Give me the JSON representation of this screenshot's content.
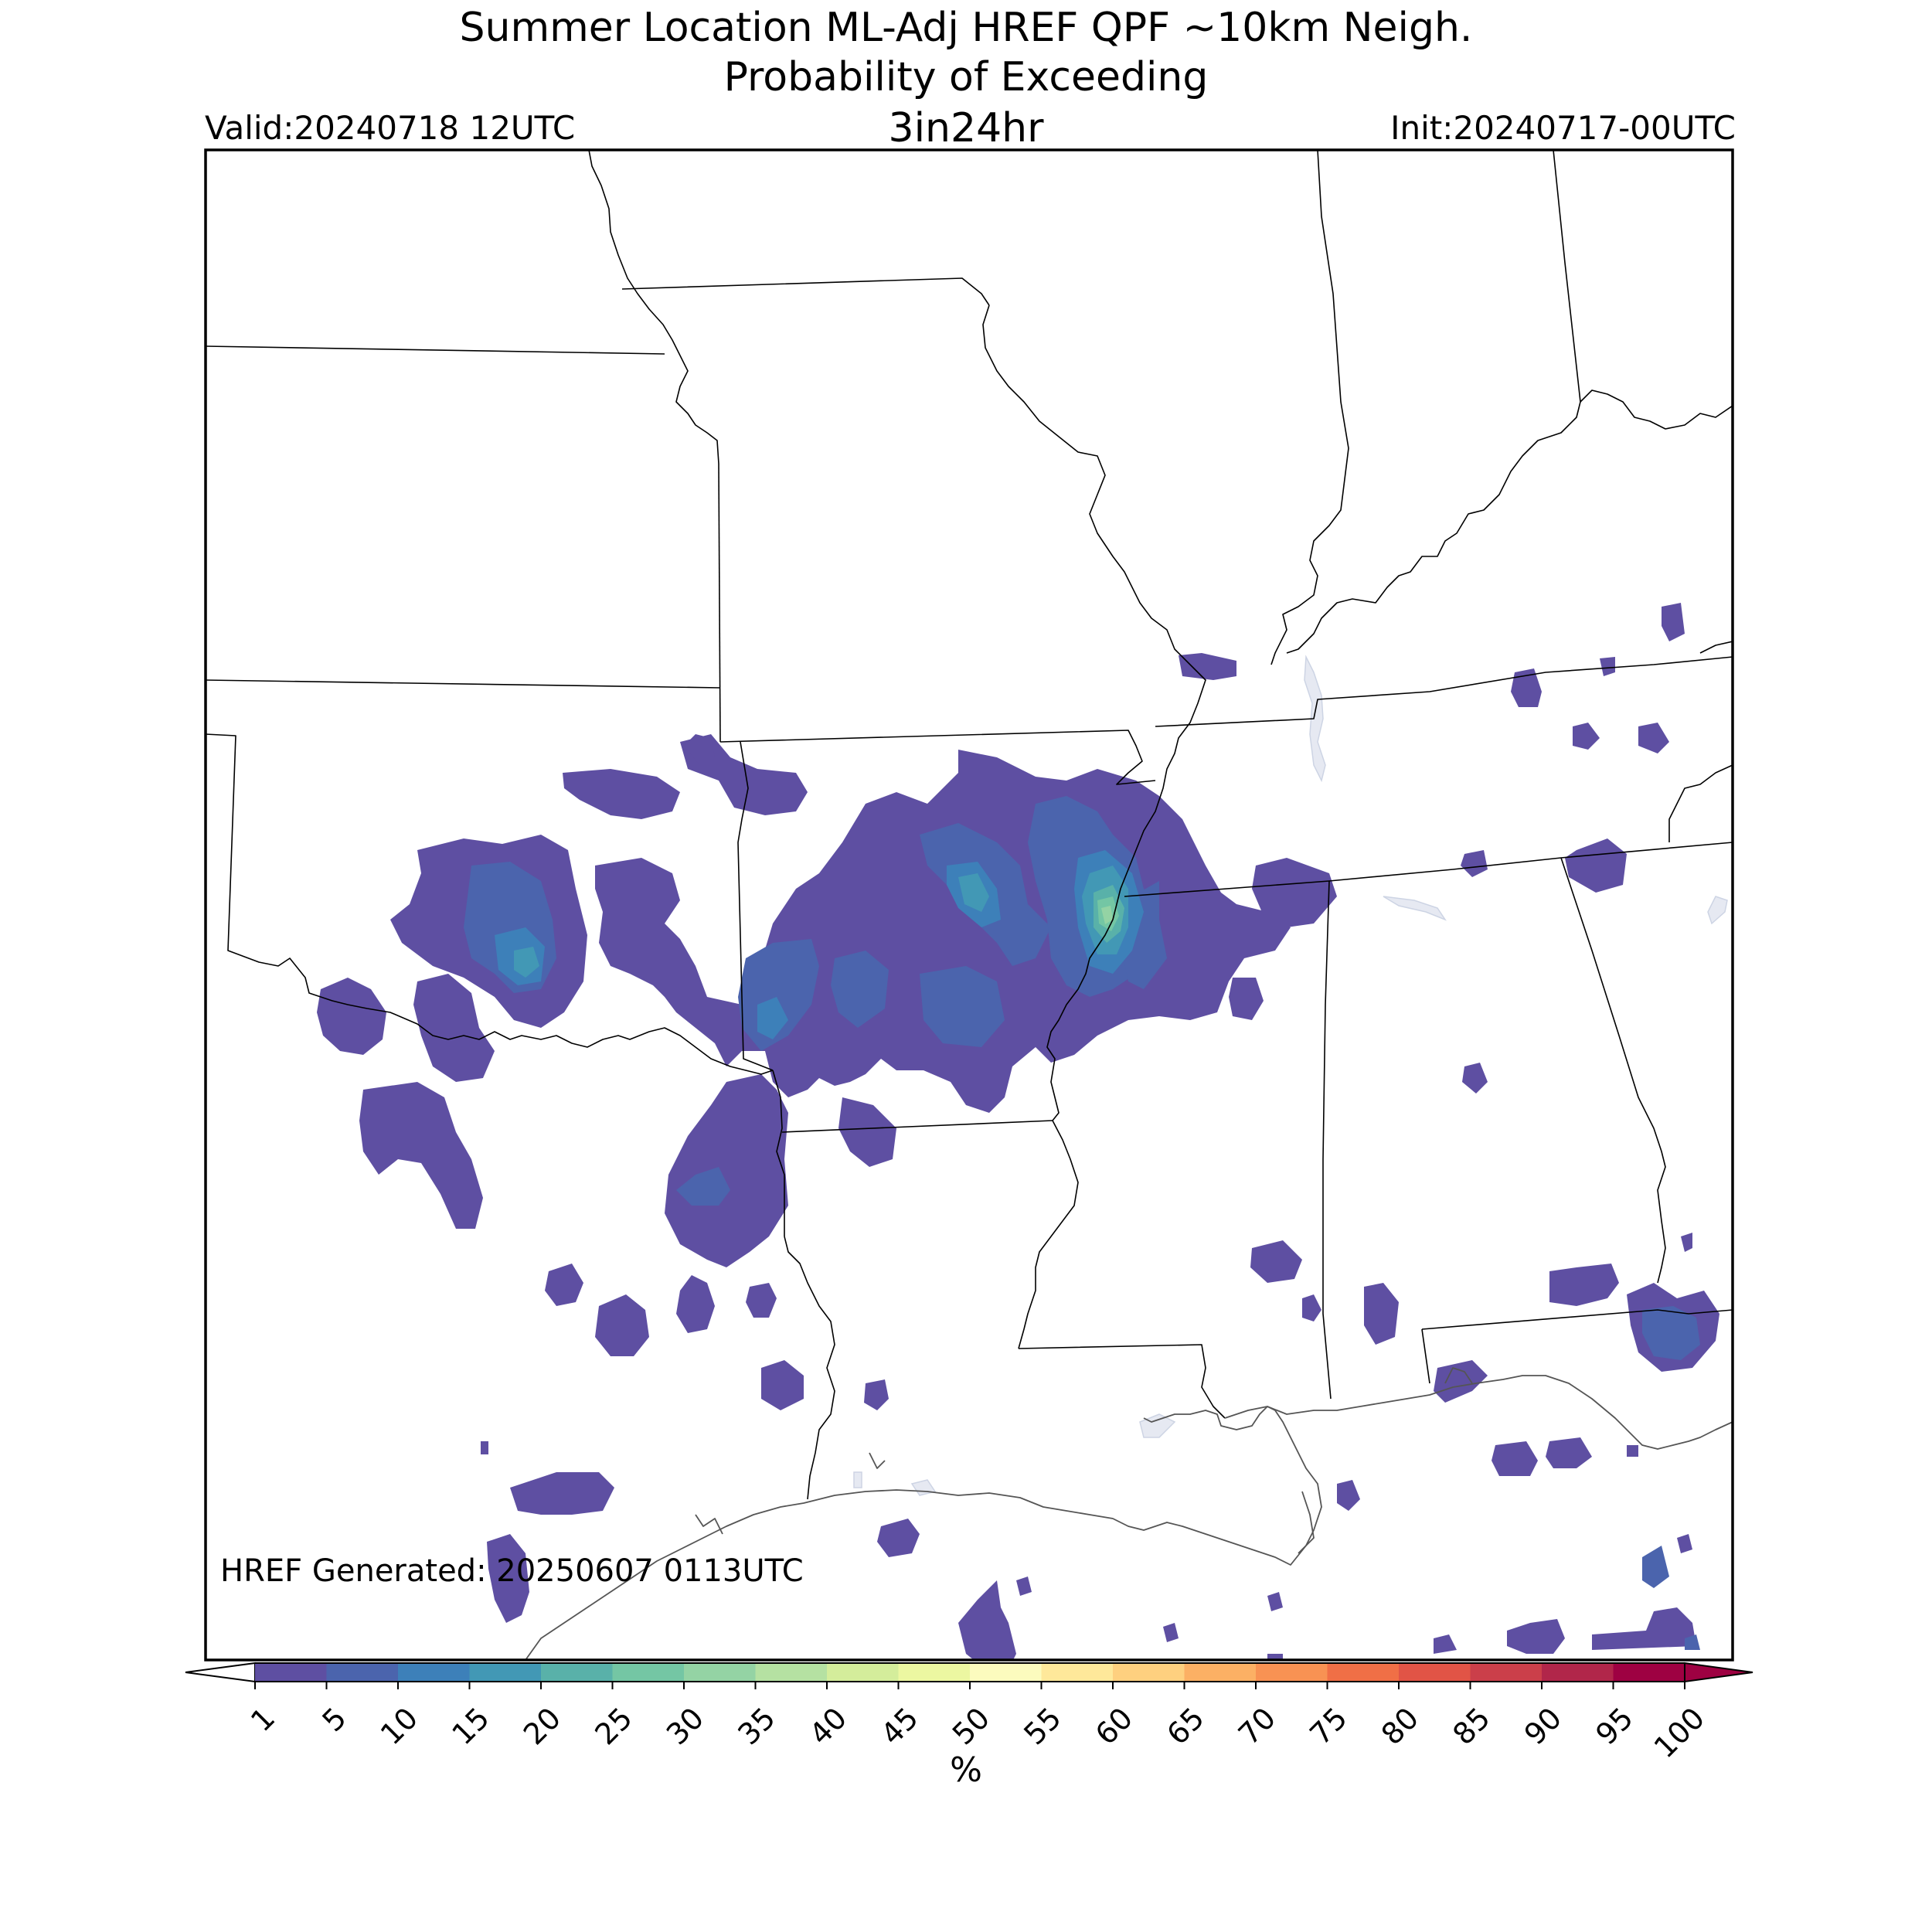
{
  "title": {
    "line1": "Summer Location ML-Adj HREF QPF ~10km Neigh.",
    "line2": "Probability of Exceeding",
    "line3": "3in24hr"
  },
  "valid_label": "Valid:20240718 12UTC",
  "init_label": "Init:20240717-00UTC",
  "generated_label": "HREF Generated: 20250607 0113UTC",
  "colorbar": {
    "unit_label": "%",
    "ticks": [
      "1",
      "5",
      "10",
      "15",
      "20",
      "25",
      "30",
      "35",
      "40",
      "45",
      "50",
      "55",
      "60",
      "65",
      "70",
      "75",
      "80",
      "85",
      "90",
      "95",
      "100"
    ],
    "colors": [
      "#5e4fa2",
      "#4b64ad",
      "#3d80b9",
      "#4298b5",
      "#59b1a9",
      "#74c6a4",
      "#94d3a4",
      "#b5e1a2",
      "#d4ed9b",
      "#ecf7a1",
      "#fcfbbe",
      "#fee89a",
      "#fed07f",
      "#fcb064",
      "#f89253",
      "#f06f46",
      "#e15446",
      "#cb3f4a",
      "#b1264a",
      "#9e0142"
    ],
    "under_color": "#ffffff",
    "over_color": "#9e0142"
  },
  "map": {
    "boundary_color": "#000000",
    "coast_color": "#555555",
    "water_color": "#e6e9f2"
  }
}
